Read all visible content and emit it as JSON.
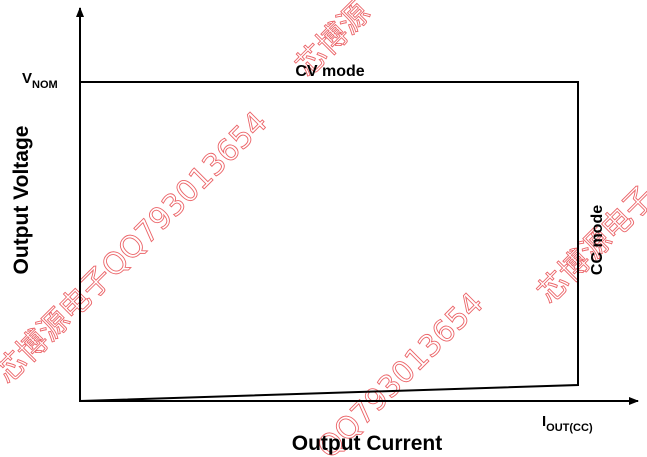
{
  "diagram": {
    "y_axis_label": "Output Voltage",
    "x_axis_label": "Output Current",
    "v_nom": {
      "main": "V",
      "sub": "NOM"
    },
    "i_out": {
      "main": "I",
      "sub": "OUT(CC)"
    },
    "cv_mode": "CV mode",
    "cc_mode": "CC mode"
  },
  "watermarks": [
    "芯博源电子QQ793013654",
    "芯博源",
    "QQ793013654",
    "芯博源电子"
  ]
}
